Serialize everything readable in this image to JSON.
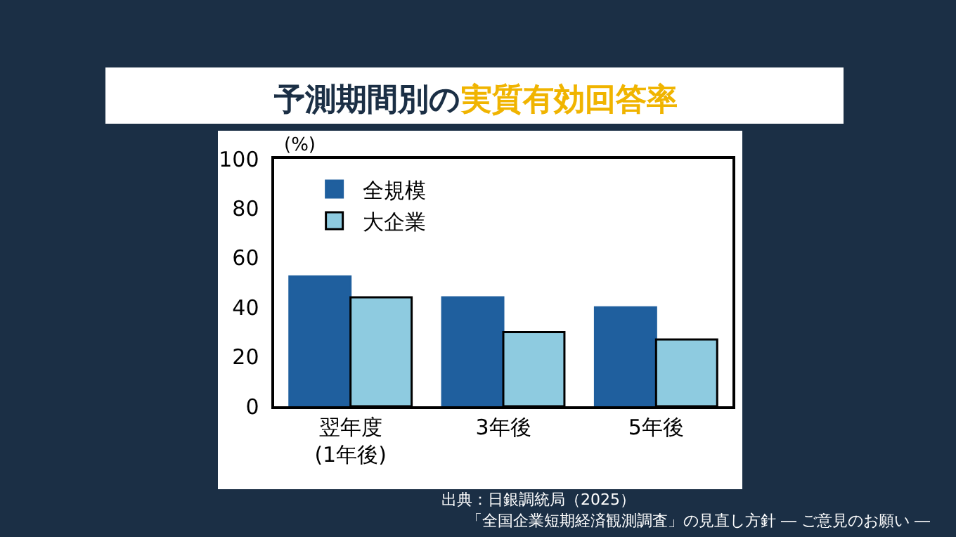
{
  "chart_data": {
    "type": "bar",
    "title": "予測期間別の実質有効回答率",
    "ylabel": "(%)",
    "categories": [
      "翌年度\n(1年後)",
      "3年後",
      "5年後"
    ],
    "series": [
      {
        "name": "全規模",
        "color": "#1f5f9e",
        "values": [
          52.5,
          44,
          40
        ]
      },
      {
        "name": "大企業",
        "color": "#8ecbe0",
        "values": [
          44,
          30,
          27
        ]
      }
    ],
    "ylim": [
      0,
      100
    ],
    "yticks": [
      0,
      20,
      40,
      60,
      80,
      100
    ],
    "grid": false,
    "legend": "top left",
    "annotations": [
      "出典：日銀調統局（2025）",
      "「全国企業短期経済観測調査」の見直し方針 ― ご意見のお願い ―"
    ]
  }
}
